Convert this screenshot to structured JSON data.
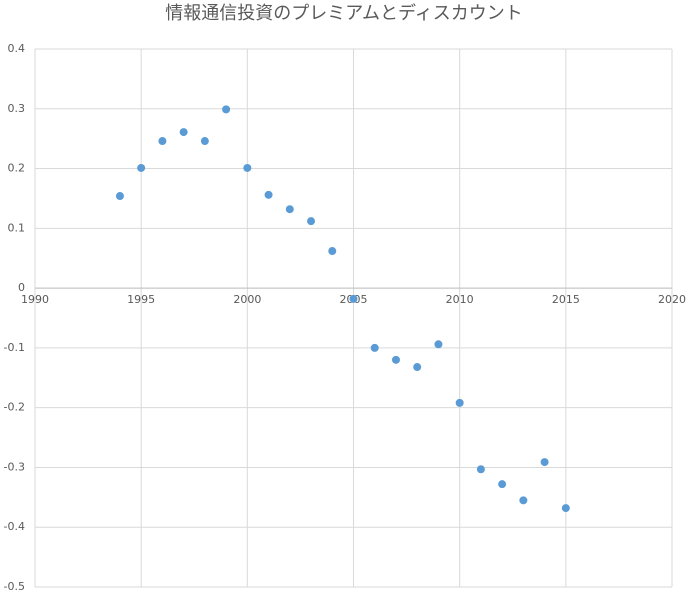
{
  "chart_data": {
    "type": "scatter",
    "title": "情報通信投資のプレミアムとディスカウント",
    "x": [
      1994,
      1995,
      1996,
      1997,
      1998,
      1999,
      2000,
      2001,
      2002,
      2003,
      2004,
      2005,
      2006,
      2007,
      2008,
      2009,
      2010,
      2011,
      2012,
      2013,
      2014,
      2015
    ],
    "values": [
      0.154,
      0.201,
      0.246,
      0.261,
      0.246,
      0.299,
      0.201,
      0.156,
      0.132,
      0.112,
      0.062,
      -0.018,
      -0.1,
      -0.12,
      -0.132,
      -0.094,
      -0.192,
      -0.303,
      -0.328,
      -0.355,
      -0.291,
      -0.368
    ],
    "color": "#5b9bd5",
    "xlim": [
      1990,
      2020
    ],
    "xticks": [
      1990,
      1995,
      2000,
      2005,
      2010,
      2015,
      2020
    ],
    "ylim": [
      -0.5,
      0.4
    ],
    "yticks": [
      -0.5,
      -0.4,
      -0.3,
      -0.2,
      -0.1,
      0,
      0.1,
      0.2,
      0.3,
      0.4
    ],
    "grid": true
  }
}
